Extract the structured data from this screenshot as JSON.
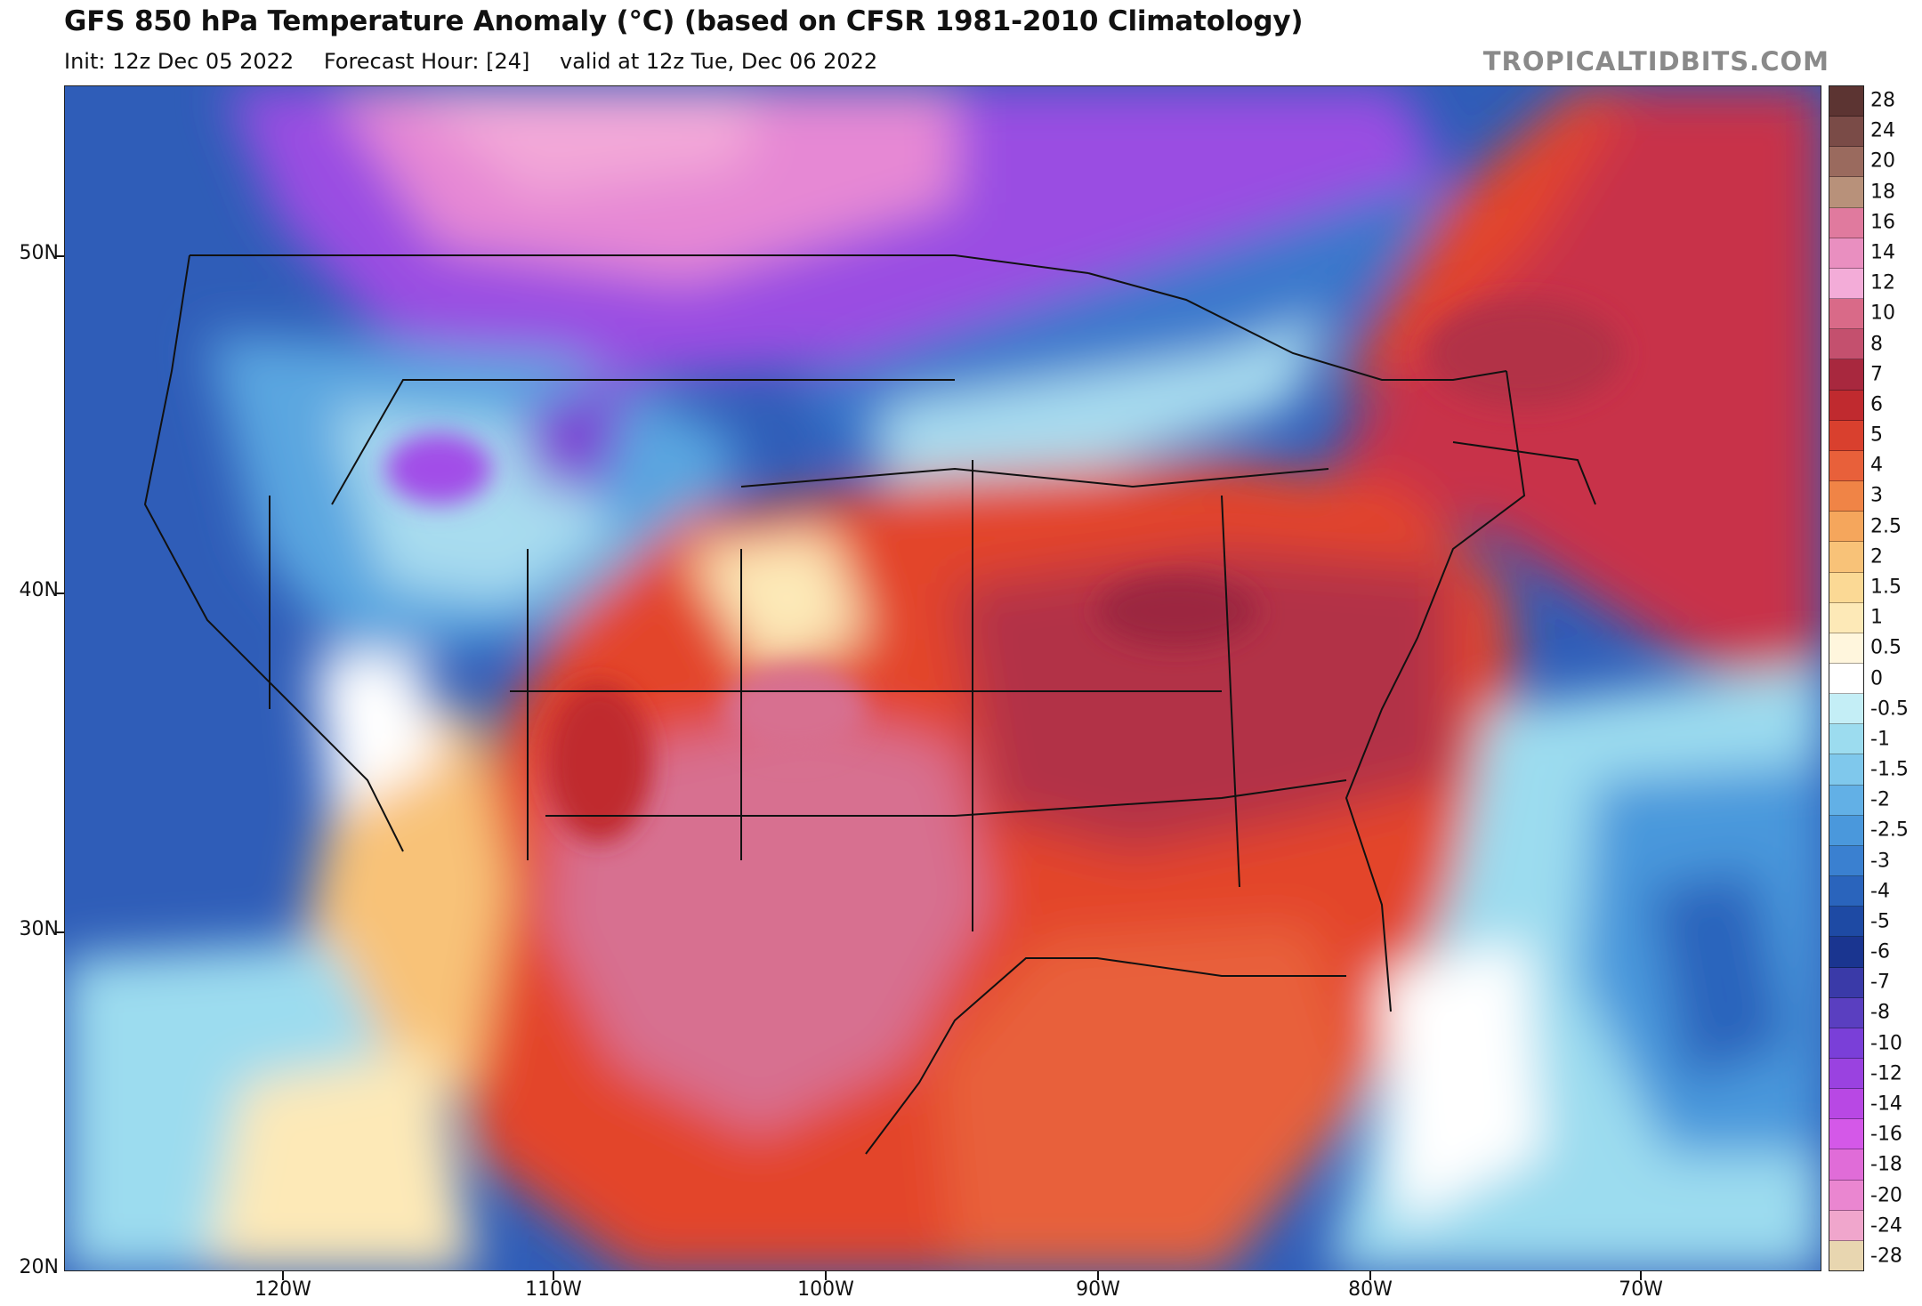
{
  "header": {
    "title": "GFS 850 hPa Temperature Anomaly (°C) (based on CFSR 1981-2010 Climatology)",
    "init": "Init: 12z Dec 05 2022",
    "forecast_hour": "Forecast Hour: [24]",
    "valid": "valid at 12z Tue, Dec 06 2022",
    "brand": "TROPICALTIDBITS.COM"
  },
  "map": {
    "lat_labels": [
      "50N",
      "40N",
      "30N",
      "20N"
    ],
    "lon_labels": [
      "120W",
      "110W",
      "100W",
      "90W",
      "80W",
      "70W"
    ],
    "regions": [
      {
        "name": "pacific-west",
        "color": "#2f5db8"
      },
      {
        "name": "far-north-pink",
        "color": "#ee8fd6"
      },
      {
        "name": "canada-purple",
        "color": "#a24ee8"
      },
      {
        "name": "great-lakes-blue",
        "color": "#3a78cc"
      },
      {
        "name": "rockies-light",
        "color": "#a8dcef"
      },
      {
        "name": "central-warm",
        "color": "#e3452c"
      },
      {
        "name": "texas-pink",
        "color": "#d77090"
      },
      {
        "name": "east-red",
        "color": "#b23347"
      },
      {
        "name": "atlantic-cool",
        "color": "#64b4e6"
      }
    ]
  },
  "colorbar": {
    "labels": [
      "28",
      "24",
      "20",
      "18",
      "16",
      "14",
      "12",
      "10",
      "8",
      "7",
      "6",
      "5",
      "4",
      "3",
      "2.5",
      "2",
      "1.5",
      "1",
      "0.5",
      "0",
      "-0.5",
      "-1",
      "-1.5",
      "-2",
      "-2.5",
      "-3",
      "-4",
      "-5",
      "-6",
      "-7",
      "-8",
      "-10",
      "-12",
      "-14",
      "-16",
      "-18",
      "-20",
      "-24",
      "-28"
    ],
    "colors": [
      "#5c3432",
      "#7a4b47",
      "#9a6a5e",
      "#b8917a",
      "#e07a9e",
      "#e98fc0",
      "#f3acd8",
      "#d96a88",
      "#c4506e",
      "#a8283e",
      "#c02a2f",
      "#d9402e",
      "#e8603a",
      "#f08446",
      "#f5a65c",
      "#f8c278",
      "#fbd995",
      "#fde9b7",
      "#fff6dd",
      "#ffffff",
      "#c4eef6",
      "#9cdcef",
      "#7fc8ec",
      "#62b0e6",
      "#4a98dc",
      "#3a80d0",
      "#2a64bc",
      "#1e4aa4",
      "#1a3590",
      "#3a3aa8",
      "#5a3fc0",
      "#7a3fd8",
      "#9a42e0",
      "#b848e4",
      "#d458e8",
      "#e06cd8",
      "#ea86d0",
      "#f0a6cc",
      "#e8d6b0"
    ]
  }
}
